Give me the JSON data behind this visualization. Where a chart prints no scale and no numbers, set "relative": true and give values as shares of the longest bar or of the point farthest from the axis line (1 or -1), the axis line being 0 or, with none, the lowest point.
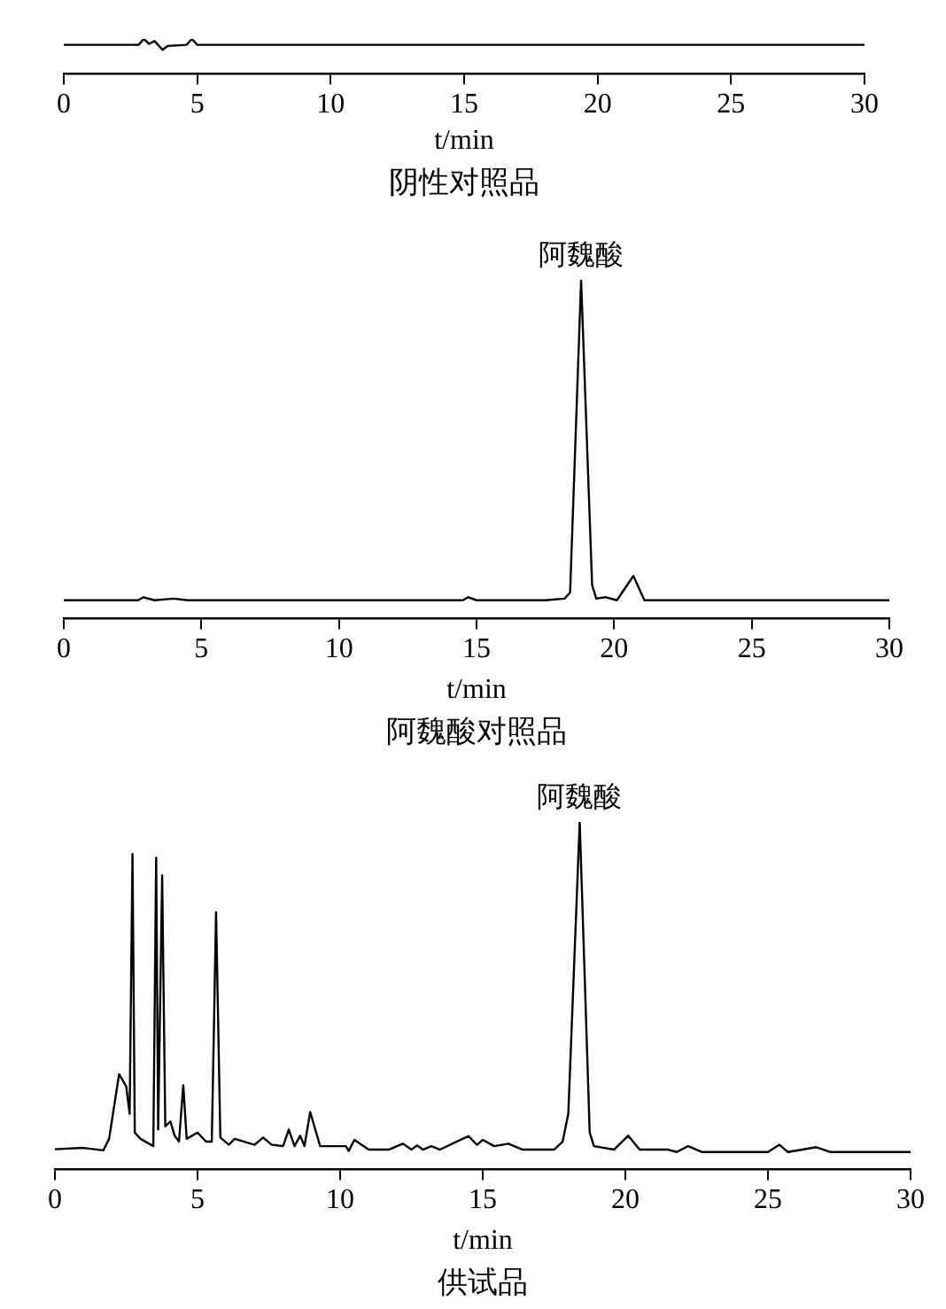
{
  "chart_data": [
    {
      "type": "line",
      "relative": true,
      "title": "阴性对照品",
      "xlabel": "t/min",
      "marker": "none",
      "xlim": [
        0,
        30
      ],
      "xticks": [
        0,
        5,
        10,
        15,
        20,
        25,
        30
      ],
      "x": [
        0,
        2.8,
        3.0,
        3.2,
        3.4,
        3.7,
        3.9,
        4.6,
        4.8,
        5.0,
        30
      ],
      "series": [
        {
          "color": "#000000",
          "values": [
            0.83,
            0.83,
            1,
            0.86,
            0.94,
            0.69,
            0.8,
            0.83,
            1,
            0.83,
            0.83
          ]
        }
      ]
    },
    {
      "type": "line",
      "relative": true,
      "title": "阿魏酸对照品",
      "xlabel": "t/min",
      "marker": "none",
      "xlim": [
        0,
        30
      ],
      "xticks": [
        0,
        5,
        10,
        15,
        20,
        25,
        30
      ],
      "annotations": [
        {
          "text": "阿魏酸",
          "x": 18.8,
          "y": 1
        }
      ],
      "x": [
        0,
        2.7,
        2.9,
        3.3,
        4.0,
        4.5,
        14.5,
        14.7,
        15.0,
        17.5,
        18.2,
        18.4,
        18.8,
        19.2,
        19.35,
        19.7,
        20.1,
        20.7,
        21.1,
        30
      ],
      "series": [
        {
          "color": "#000000",
          "values": [
            0.054,
            0.054,
            0.063,
            0.054,
            0.059,
            0.054,
            0.054,
            0.063,
            0.054,
            0.054,
            0.059,
            0.077,
            1,
            0.099,
            0.059,
            0.063,
            0.054,
            0.126,
            0.054,
            0.054
          ]
        }
      ]
    },
    {
      "type": "line",
      "relative": true,
      "title": "供试品",
      "xlabel": "t/min",
      "marker": "none",
      "xlim": [
        0,
        30
      ],
      "xticks": [
        0,
        5,
        10,
        15,
        20,
        25,
        30
      ],
      "annotations": [
        {
          "text": "阿魏酸",
          "x": 18.4,
          "y": 1
        }
      ],
      "x": [
        0,
        1.0,
        1.7,
        1.9,
        2.25,
        2.5,
        2.62,
        2.72,
        2.8,
        3.0,
        3.45,
        3.55,
        3.62,
        3.76,
        3.87,
        4.05,
        4.2,
        4.35,
        4.5,
        4.62,
        5.0,
        5.3,
        5.5,
        5.65,
        5.8,
        6.1,
        6.3,
        7.0,
        7.3,
        7.6,
        8.0,
        8.2,
        8.4,
        8.6,
        8.75,
        8.95,
        9.3,
        10.2,
        10.3,
        10.5,
        11.0,
        11.7,
        12.2,
        12.5,
        12.7,
        12.9,
        13.2,
        13.5,
        14.5,
        14.8,
        15.0,
        15.4,
        15.9,
        16.4,
        17.5,
        17.8,
        18.0,
        18.4,
        18.75,
        18.9,
        19.6,
        20.1,
        20.5,
        21.5,
        21.8,
        22.2,
        22.7,
        25.0,
        25.4,
        25.7,
        26.7,
        27.2,
        30
      ],
      "series": [
        {
          "color": "#000000",
          "values": [
            0.058,
            0.062,
            0.055,
            0.088,
            0.274,
            0.239,
            0.16,
            0.908,
            0.106,
            0.088,
            0.067,
            0.897,
            0.115,
            0.846,
            0.124,
            0.138,
            0.097,
            0.08,
            0.242,
            0.088,
            0.106,
            0.08,
            0.08,
            0.74,
            0.092,
            0.071,
            0.088,
            0.071,
            0.092,
            0.071,
            0.067,
            0.115,
            0.067,
            0.097,
            0.067,
            0.165,
            0.067,
            0.067,
            0.053,
            0.085,
            0.057,
            0.057,
            0.074,
            0.057,
            0.069,
            0.057,
            0.067,
            0.057,
            0.096,
            0.071,
            0.085,
            0.067,
            0.074,
            0.057,
            0.057,
            0.08,
            0.16,
            1,
            0.106,
            0.067,
            0.057,
            0.097,
            0.057,
            0.057,
            0.05,
            0.067,
            0.05,
            0.05,
            0.071,
            0.05,
            0.064,
            0.05,
            0.05
          ]
        }
      ]
    }
  ]
}
